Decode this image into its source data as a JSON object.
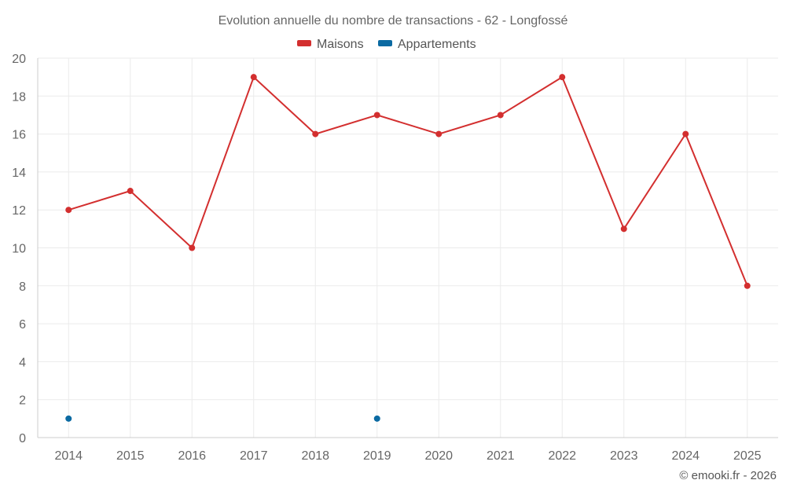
{
  "chart_data": {
    "type": "line",
    "title": "Evolution annuelle du nombre de transactions - 62 - Longfossé",
    "categories": [
      "2014",
      "2015",
      "2016",
      "2017",
      "2018",
      "2019",
      "2020",
      "2021",
      "2022",
      "2023",
      "2024",
      "2025"
    ],
    "series": [
      {
        "name": "Maisons",
        "color": "#d32f2f",
        "values": [
          12,
          13,
          10,
          19,
          16,
          17,
          16,
          17,
          19,
          11,
          16,
          8
        ]
      },
      {
        "name": "Appartements",
        "color": "#0b6aa2",
        "values": [
          1,
          null,
          null,
          null,
          null,
          1,
          null,
          null,
          null,
          null,
          null,
          null
        ]
      }
    ],
    "ylim": [
      0,
      20
    ],
    "yticks": [
      0,
      2,
      4,
      6,
      8,
      10,
      12,
      14,
      16,
      18,
      20
    ],
    "xlabel": "",
    "ylabel": "",
    "legend_position": "top-center",
    "grid": true
  },
  "credit": "© emooki.fr - 2026"
}
